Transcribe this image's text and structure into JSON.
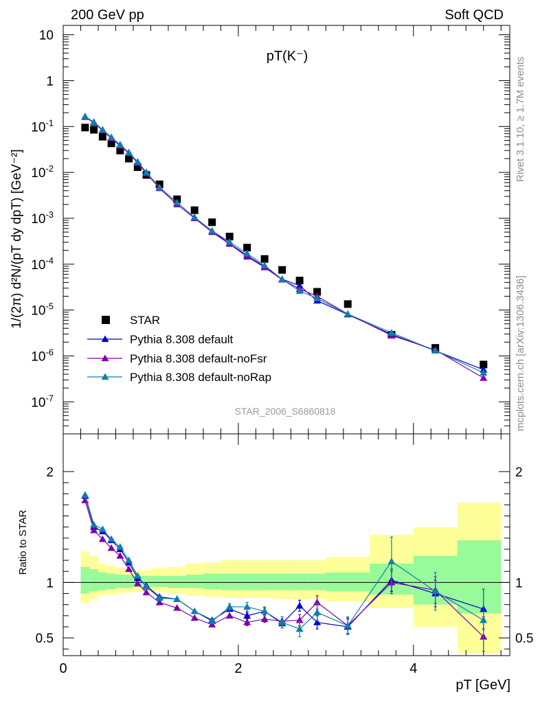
{
  "header": {
    "left": "200 GeV pp",
    "right": "Soft QCD"
  },
  "side_labels": {
    "rivet": "Rivet 3.1.10, ≥ 1.7M events",
    "mcplots": "mcplots.cern.ch [arXiv:1306.3436]"
  },
  "watermark": "STAR_2006_S6860818",
  "colors": {
    "star": "#000000",
    "default": "#0000cc",
    "noFsr": "#7f00aa",
    "noRap": "#0f80a8",
    "band_green": "#99fa99",
    "band_yellow": "#ffff99"
  },
  "chart_data": [
    {
      "type": "scatter",
      "title": "pT(K⁻)",
      "ylabel": "1/(2π) d²N/(pT dy dpT) [GeV⁻²]",
      "yscale": "log",
      "xlim": [
        0,
        5.1
      ],
      "ylim": [
        2e-08,
        16
      ],
      "y_ticks": [
        {
          "v": 1e-07,
          "label": "10^-7"
        },
        {
          "v": 1e-06,
          "label": "10^-6"
        },
        {
          "v": 1e-05,
          "label": "10^-5"
        },
        {
          "v": 0.0001,
          "label": "10^-4"
        },
        {
          "v": 0.001,
          "label": "10^-3"
        },
        {
          "v": 0.01,
          "label": "10^-2"
        },
        {
          "v": 0.1,
          "label": "10^-1"
        },
        {
          "v": 1,
          "label": "1"
        },
        {
          "v": 10,
          "label": "10"
        }
      ],
      "legend_position": "bottom-left",
      "legend": [
        "STAR",
        "Pythia 8.308 default",
        "Pythia 8.308 default-noFsr",
        "Pythia 8.308 default-noRap"
      ],
      "x": [
        0.25,
        0.35,
        0.45,
        0.55,
        0.65,
        0.75,
        0.85,
        0.95,
        1.1,
        1.3,
        1.5,
        1.7,
        1.9,
        2.1,
        2.3,
        2.5,
        2.7,
        2.9,
        3.25,
        3.75,
        4.25,
        4.8
      ],
      "series": [
        {
          "name": "STAR",
          "values": [
            0.095,
            0.085,
            0.06,
            0.043,
            0.03,
            0.02,
            0.013,
            0.0088,
            0.0055,
            0.0026,
            0.0015,
            0.00082,
            0.0004,
            0.00023,
            0.00013,
            7.5e-05,
            4.4e-05,
            2.5e-05,
            1.35e-05,
            2.9e-06,
            1.5e-06,
            6.5e-07
          ]
        },
        {
          "name": "Pythia 8.308 default",
          "values": [
            0.165,
            0.125,
            0.085,
            0.058,
            0.04,
            0.027,
            0.017,
            0.01,
            0.0047,
            0.0022,
            0.00105,
            0.00053,
            0.00028,
            0.000155,
            8.8e-05,
            4.7e-05,
            3.4e-05,
            1.6e-05,
            8e-06,
            2.95e-06,
            1.3e-06,
            5e-07
          ]
        },
        {
          "name": "Pythia 8.308 default-noFsr",
          "values": [
            0.16,
            0.12,
            0.082,
            0.055,
            0.038,
            0.026,
            0.016,
            0.0095,
            0.0045,
            0.002,
            0.001,
            0.0005,
            0.000275,
            0.000145,
            8.5e-05,
            4.6e-05,
            2.9e-05,
            2e-05,
            8.2e-06,
            2.8e-06,
            1.35e-06,
            3.3e-07
          ]
        },
        {
          "name": "Pythia 8.308 default-noRap",
          "values": [
            0.165,
            0.125,
            0.085,
            0.058,
            0.04,
            0.027,
            0.017,
            0.01,
            0.0047,
            0.0022,
            0.00105,
            0.00053,
            0.000305,
            0.00017,
            9.4e-05,
            4.7e-05,
            2.6e-05,
            1.8e-05,
            8.2e-06,
            3.2e-06,
            1.3e-06,
            4.3e-07
          ]
        }
      ]
    },
    {
      "type": "scatter",
      "ylabel": "Ratio to STAR",
      "xlabel": "pT [GeV]",
      "xlim": [
        0,
        5.1
      ],
      "ylim": [
        0.34,
        2.34
      ],
      "x_ticks": [
        0,
        2,
        4
      ],
      "y_ticks": [
        0.5,
        1,
        2
      ],
      "x": [
        0.25,
        0.35,
        0.45,
        0.55,
        0.65,
        0.75,
        0.85,
        0.95,
        1.1,
        1.3,
        1.5,
        1.7,
        1.9,
        2.1,
        2.3,
        2.5,
        2.7,
        2.9,
        3.25,
        3.75,
        4.25,
        4.8
      ],
      "bins": [
        [
          0.2,
          0.3
        ],
        [
          0.3,
          0.4
        ],
        [
          0.4,
          0.5
        ],
        [
          0.5,
          0.6
        ],
        [
          0.6,
          0.7
        ],
        [
          0.7,
          0.8
        ],
        [
          0.8,
          0.9
        ],
        [
          0.9,
          1.0
        ],
        [
          1.0,
          1.2
        ],
        [
          1.2,
          1.4
        ],
        [
          1.4,
          1.6
        ],
        [
          1.6,
          1.8
        ],
        [
          1.8,
          2.0
        ],
        [
          2.0,
          2.2
        ],
        [
          2.2,
          2.4
        ],
        [
          2.4,
          2.6
        ],
        [
          2.6,
          2.8
        ],
        [
          2.8,
          3.0
        ],
        [
          3.0,
          3.5
        ],
        [
          3.5,
          4.0
        ],
        [
          4.0,
          4.5
        ],
        [
          4.5,
          5.0
        ]
      ],
      "band_green": [
        [
          0.9,
          1.14
        ],
        [
          0.92,
          1.12
        ],
        [
          0.93,
          1.09
        ],
        [
          0.94,
          1.08
        ],
        [
          0.95,
          1.07
        ],
        [
          0.95,
          1.07
        ],
        [
          0.96,
          1.06
        ],
        [
          0.96,
          1.06
        ],
        [
          0.96,
          1.06
        ],
        [
          0.95,
          1.06
        ],
        [
          0.95,
          1.07
        ],
        [
          0.94,
          1.08
        ],
        [
          0.93,
          1.08
        ],
        [
          0.93,
          1.08
        ],
        [
          0.93,
          1.08
        ],
        [
          0.93,
          1.08
        ],
        [
          0.93,
          1.08
        ],
        [
          0.93,
          1.08
        ],
        [
          0.92,
          1.09
        ],
        [
          0.89,
          1.17
        ],
        [
          0.8,
          1.24
        ],
        [
          0.72,
          1.38
        ]
      ],
      "band_yellow": [
        [
          0.81,
          1.28
        ],
        [
          0.85,
          1.24
        ],
        [
          0.88,
          1.17
        ],
        [
          0.89,
          1.15
        ],
        [
          0.9,
          1.13
        ],
        [
          0.91,
          1.12
        ],
        [
          0.92,
          1.11
        ],
        [
          0.92,
          1.11
        ],
        [
          0.91,
          1.13
        ],
        [
          0.9,
          1.14
        ],
        [
          0.88,
          1.17
        ],
        [
          0.87,
          1.18
        ],
        [
          0.86,
          1.2
        ],
        [
          0.86,
          1.2
        ],
        [
          0.86,
          1.2
        ],
        [
          0.85,
          1.2
        ],
        [
          0.85,
          1.2
        ],
        [
          0.85,
          1.2
        ],
        [
          0.83,
          1.23
        ],
        [
          0.77,
          1.43
        ],
        [
          0.6,
          1.5
        ],
        [
          0.36,
          1.72
        ]
      ],
      "series": [
        {
          "name": "Pythia 8.308 default",
          "values": [
            1.78,
            1.5,
            1.46,
            1.38,
            1.3,
            1.18,
            1.04,
            0.97,
            0.87,
            0.85,
            0.74,
            0.66,
            0.76,
            0.7,
            0.74,
            0.63,
            0.79,
            0.64,
            0.6,
            1.02,
            0.9,
            0.76
          ],
          "errors": [
            0.02,
            0.02,
            0.02,
            0.02,
            0.02,
            0.02,
            0.02,
            0.02,
            0.01,
            0.01,
            0.01,
            0.015,
            0.02,
            0.03,
            0.03,
            0.04,
            0.05,
            0.06,
            0.07,
            0.1,
            0.12,
            0.18
          ]
        },
        {
          "name": "Pythia 8.308 default-noFsr",
          "values": [
            1.74,
            1.47,
            1.39,
            1.31,
            1.24,
            1.12,
            0.99,
            0.91,
            0.82,
            0.77,
            0.68,
            0.62,
            0.7,
            0.64,
            0.67,
            0.65,
            0.66,
            0.82,
            0.61,
            1.0,
            0.93,
            0.51
          ],
          "errors": [
            0.02,
            0.02,
            0.02,
            0.02,
            0.02,
            0.02,
            0.02,
            0.02,
            0.01,
            0.01,
            0.01,
            0.015,
            0.02,
            0.03,
            0.03,
            0.04,
            0.05,
            0.06,
            0.07,
            0.1,
            0.12,
            0.18
          ]
        },
        {
          "name": "Pythia 8.308 default-noRap",
          "values": [
            1.79,
            1.52,
            1.48,
            1.39,
            1.32,
            1.2,
            1.06,
            0.96,
            0.86,
            0.85,
            0.74,
            0.65,
            0.78,
            0.78,
            0.74,
            0.64,
            0.58,
            0.73,
            0.61,
            1.19,
            0.92,
            0.66
          ],
          "errors": [
            0.02,
            0.02,
            0.02,
            0.02,
            0.02,
            0.02,
            0.02,
            0.02,
            0.01,
            0.01,
            0.01,
            0.015,
            0.03,
            0.04,
            0.04,
            0.05,
            0.07,
            0.08,
            0.08,
            0.22,
            0.17,
            0.28
          ]
        }
      ]
    }
  ]
}
